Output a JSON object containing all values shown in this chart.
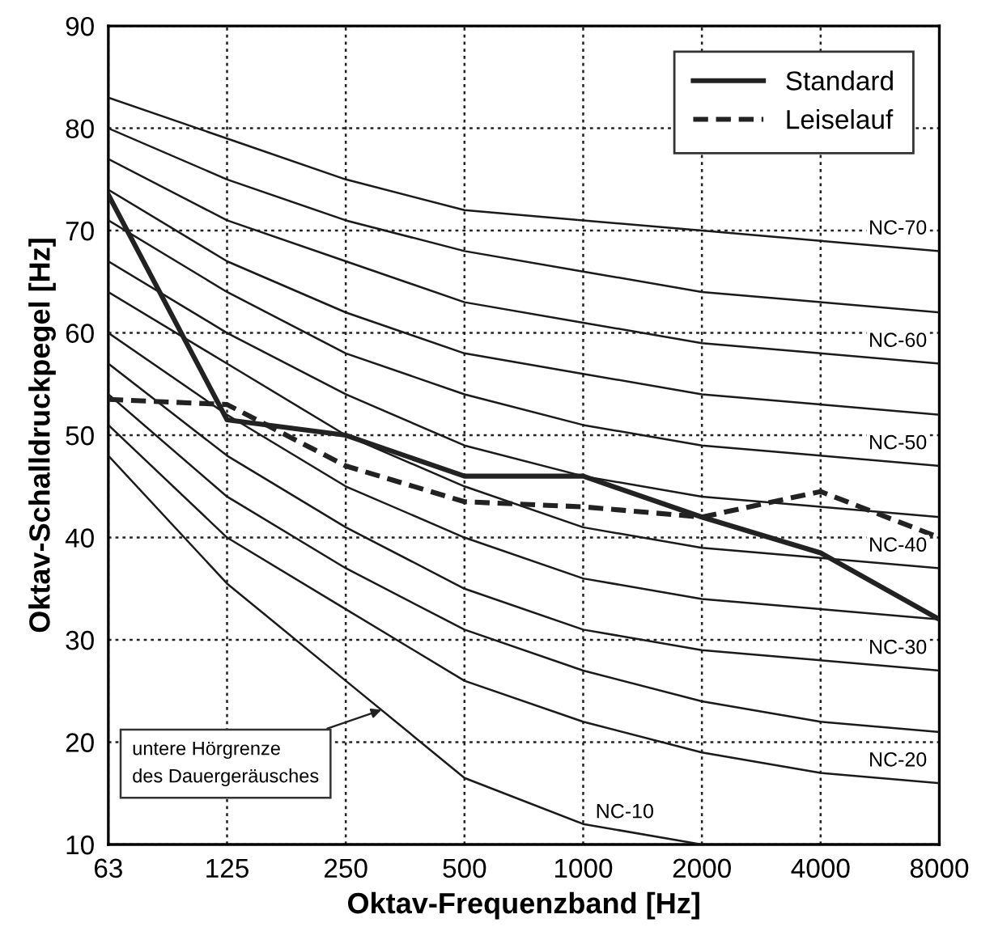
{
  "chart_data": {
    "type": "line",
    "xlabel": "Oktav-Frequenzband [Hz]",
    "ylabel": "Oktav-Schalldruckpegel [Hz]",
    "categories": [
      "63",
      "125",
      "250",
      "500",
      "1000",
      "2000",
      "4000",
      "8000"
    ],
    "ylim": [
      10,
      90
    ],
    "yticks": [
      10,
      20,
      30,
      40,
      50,
      60,
      70,
      80,
      90
    ],
    "grid": true,
    "legend": "top right",
    "marker": "none",
    "series": [
      {
        "name": "NC-70",
        "color": "#1a1a1a",
        "values": [
          83,
          79,
          75,
          72,
          71,
          70,
          69,
          68
        ]
      },
      {
        "color": "#1a1a1a",
        "values": [
          80,
          75,
          71,
          68,
          66,
          64,
          63,
          62
        ]
      },
      {
        "name": "NC-60",
        "color": "#1a1a1a",
        "values": [
          77,
          71,
          67,
          63,
          61,
          59,
          58,
          57
        ]
      },
      {
        "color": "#1a1a1a",
        "values": [
          74,
          67,
          62,
          58,
          56,
          54,
          53,
          52
        ]
      },
      {
        "name": "NC-50",
        "color": "#1a1a1a",
        "values": [
          71,
          64,
          58,
          54,
          51,
          49,
          48,
          47
        ]
      },
      {
        "color": "#1a1a1a",
        "values": [
          67,
          60,
          54,
          49,
          46,
          44,
          43,
          42
        ]
      },
      {
        "name": "NC-40",
        "color": "#1a1a1a",
        "values": [
          64,
          57,
          50,
          45,
          41,
          39,
          38,
          37
        ]
      },
      {
        "color": "#1a1a1a",
        "values": [
          60,
          52,
          45,
          40,
          36,
          34,
          33,
          32
        ]
      },
      {
        "name": "NC-30",
        "color": "#1a1a1a",
        "values": [
          57,
          48,
          41,
          35,
          31,
          29,
          28,
          27
        ]
      },
      {
        "color": "#1a1a1a",
        "values": [
          54,
          44,
          37,
          31,
          27,
          24,
          22,
          21
        ]
      },
      {
        "name": "NC-20",
        "color": "#1a1a1a",
        "values": [
          51,
          40,
          33,
          26,
          22,
          19,
          17,
          16
        ]
      },
      {
        "name": "NC-10",
        "color": "#1a1a1a",
        "values": [
          48,
          35.5,
          26,
          16.5,
          12,
          10,
          null,
          null
        ]
      },
      {
        "name": "Standard",
        "color": "#222222",
        "line_style": "solid",
        "values": [
          73.5,
          51.5,
          50,
          46,
          46,
          42,
          38.5,
          32
        ]
      },
      {
        "name": "Leiselauf",
        "color": "#222222",
        "line_style": "dashed",
        "values": [
          53.5,
          53,
          47,
          43.5,
          43,
          42,
          44.5,
          40
        ]
      }
    ],
    "annotations": [
      "untere Hörgrenze\ndes Dauergeräusches"
    ]
  }
}
